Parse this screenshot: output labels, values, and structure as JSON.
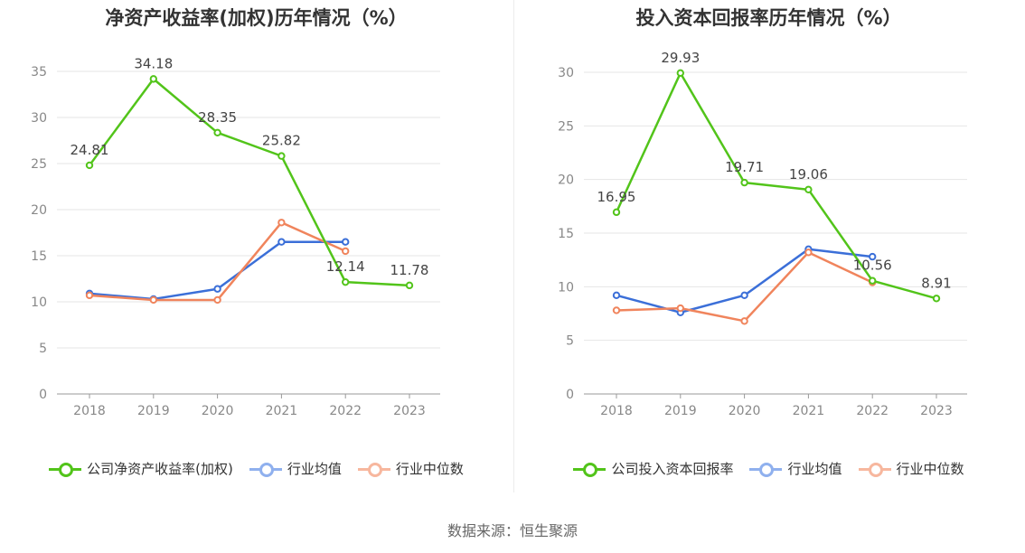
{
  "footer": {
    "source": "数据来源：恒生聚源"
  },
  "colors": {
    "company": "#52c41a",
    "industry_avg": "#3b6fd8",
    "industry_median": "#f0845c",
    "legend_avg": "#8fb0ee",
    "legend_median": "#f7b79e",
    "grid": "#e6e6e6",
    "axis": "#999999"
  },
  "chart_data": [
    {
      "type": "line",
      "title": "净资产收益率(加权)历年情况（%）",
      "categories": [
        "2018",
        "2019",
        "2020",
        "2021",
        "2022",
        "2023"
      ],
      "ylim": [
        0,
        35
      ],
      "yticks": [
        0,
        5,
        10,
        15,
        20,
        25,
        30,
        35
      ],
      "grid": true,
      "legend_position": "bottom",
      "series": [
        {
          "name": "公司净资产收益率(加权)",
          "key": "company",
          "values": [
            24.81,
            34.18,
            28.35,
            25.82,
            12.14,
            11.78
          ],
          "labels": true
        },
        {
          "name": "行业均值",
          "key": "industry_avg",
          "values": [
            10.9,
            10.3,
            11.4,
            16.5,
            16.5,
            null
          ]
        },
        {
          "name": "行业中位数",
          "key": "industry_median",
          "values": [
            10.7,
            10.2,
            10.2,
            18.6,
            15.5,
            null
          ]
        }
      ]
    },
    {
      "type": "line",
      "title": "投入资本回报率历年情况（%）",
      "categories": [
        "2018",
        "2019",
        "2020",
        "2021",
        "2022",
        "2023"
      ],
      "ylim": [
        0,
        30
      ],
      "yticks": [
        0,
        5,
        10,
        15,
        20,
        25,
        30
      ],
      "grid": true,
      "legend_position": "bottom",
      "series": [
        {
          "name": "公司投入资本回报率",
          "key": "company",
          "values": [
            16.95,
            29.93,
            19.71,
            19.06,
            10.56,
            8.91
          ],
          "labels": true
        },
        {
          "name": "行业均值",
          "key": "industry_avg",
          "values": [
            9.2,
            7.6,
            9.2,
            13.5,
            12.8,
            null
          ]
        },
        {
          "name": "行业中位数",
          "key": "industry_median",
          "values": [
            7.8,
            8.0,
            6.8,
            13.2,
            10.4,
            null
          ]
        }
      ]
    }
  ]
}
